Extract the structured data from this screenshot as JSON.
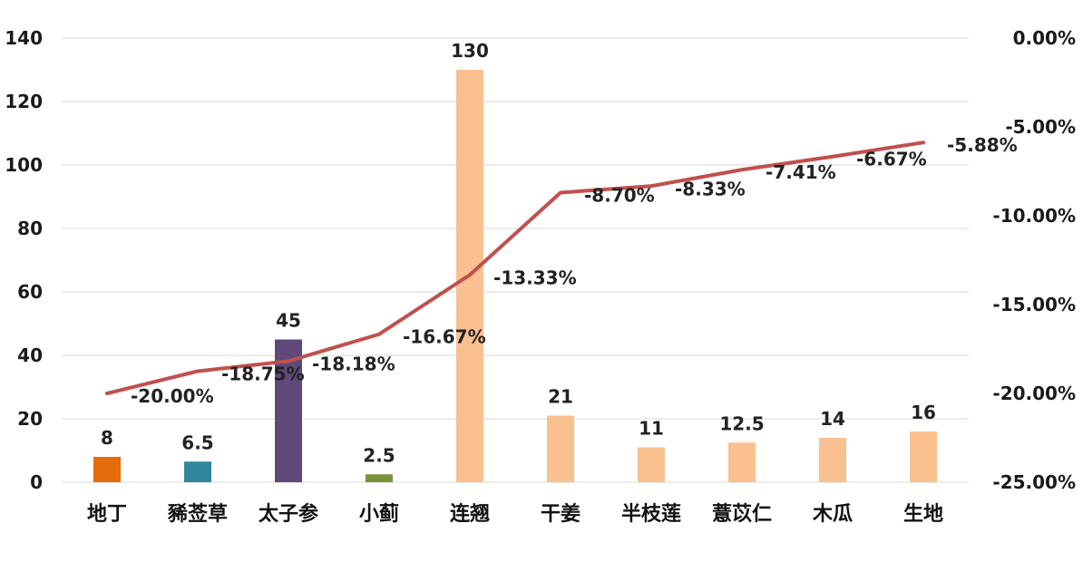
{
  "chart_data": {
    "type": "bar",
    "categories": [
      "地丁",
      "豨莶草",
      "太子参",
      "小蓟",
      "连翘",
      "干姜",
      "半枝莲",
      "薏苡仁",
      "木瓜",
      "生地"
    ],
    "series": [
      {
        "type": "bar",
        "axis": "left",
        "values": [
          8,
          6.5,
          45,
          2.5,
          130,
          21,
          11,
          12.5,
          14,
          16
        ],
        "value_labels": [
          "8",
          "6.5",
          "45",
          "2.5",
          "130",
          "21",
          "11",
          "12.5",
          "14",
          "16"
        ],
        "colors": [
          "#e46c0a",
          "#31859c",
          "#60497a",
          "#77933c",
          "#fac090",
          "#fac090",
          "#fac090",
          "#fac090",
          "#fac090",
          "#fac090"
        ]
      },
      {
        "type": "line",
        "axis": "right",
        "values": [
          -20.0,
          -18.75,
          -18.18,
          -16.67,
          -13.33,
          -8.7,
          -8.33,
          -7.41,
          -6.67,
          -5.88
        ],
        "value_labels": [
          "-20.00%",
          "-18.75%",
          "-18.18%",
          "-16.67%",
          "-13.33%",
          "-8.70%",
          "-8.33%",
          "-7.41%",
          "-6.67%",
          "-5.88%"
        ],
        "color": "#c0504d"
      }
    ],
    "y_left": {
      "ylim": [
        0,
        140
      ],
      "ticks": [
        "0",
        "20",
        "40",
        "60",
        "80",
        "100",
        "120",
        "140"
      ]
    },
    "y_right": {
      "ylim": [
        -25,
        0
      ],
      "ticks": [
        "-25.00%",
        "-20.00%",
        "-15.00%",
        "-10.00%",
        "-5.00%",
        "0.00%"
      ]
    },
    "title": "",
    "xlabel": "",
    "ylabel": "",
    "grid": true,
    "legend": "none"
  }
}
